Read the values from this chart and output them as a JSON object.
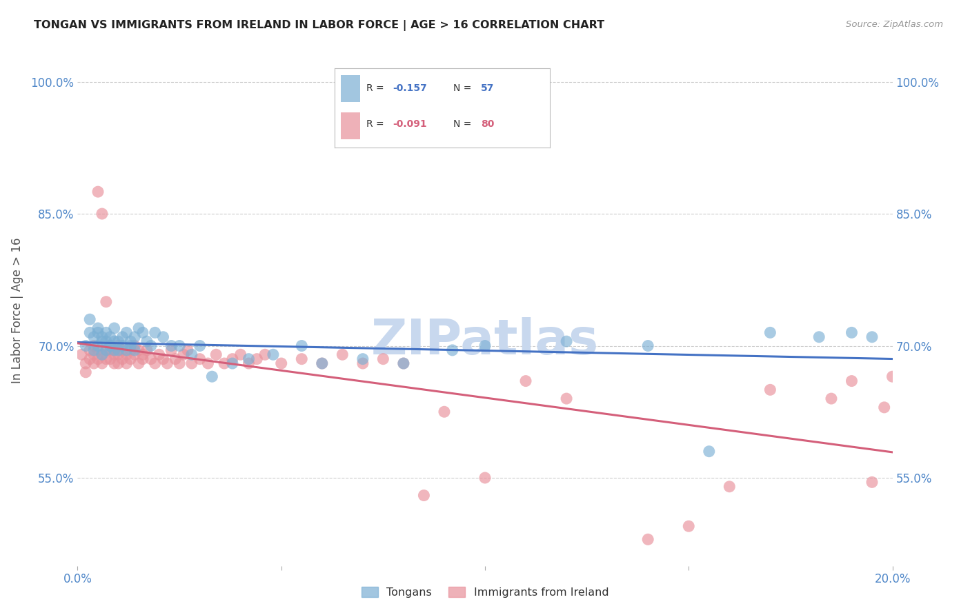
{
  "title": "TONGAN VS IMMIGRANTS FROM IRELAND IN LABOR FORCE | AGE > 16 CORRELATION CHART",
  "source": "Source: ZipAtlas.com",
  "ylabel": "In Labor Force | Age > 16",
  "xlim": [
    0.0,
    0.2
  ],
  "ylim": [
    0.45,
    1.03
  ],
  "yticks": [
    0.55,
    0.7,
    0.85,
    1.0
  ],
  "ytick_labels": [
    "55.0%",
    "70.0%",
    "85.0%",
    "100.0%"
  ],
  "xticks": [
    0.0,
    0.05,
    0.1,
    0.15,
    0.2
  ],
  "xtick_labels": [
    "0.0%",
    "",
    "",
    "",
    "20.0%"
  ],
  "series1_label": "Tongans",
  "series2_label": "Immigrants from Ireland",
  "series1_color": "#7bafd4",
  "series2_color": "#e8909a",
  "series1_line_color": "#4472c4",
  "series2_line_color": "#d45f7a",
  "background_color": "#ffffff",
  "axis_label_color": "#4e86c8",
  "title_color": "#222222",
  "grid_color": "#cccccc",
  "watermark_text": "ZIPatlas",
  "watermark_color": "#c8d8ee",
  "corr1_r": "-0.157",
  "corr1_n": "57",
  "corr2_r": "-0.091",
  "corr2_n": "80",
  "series1_x": [
    0.002,
    0.003,
    0.003,
    0.004,
    0.004,
    0.005,
    0.005,
    0.005,
    0.006,
    0.006,
    0.006,
    0.007,
    0.007,
    0.007,
    0.008,
    0.008,
    0.008,
    0.009,
    0.009,
    0.009,
    0.01,
    0.01,
    0.011,
    0.011,
    0.012,
    0.012,
    0.013,
    0.013,
    0.014,
    0.014,
    0.015,
    0.016,
    0.017,
    0.018,
    0.019,
    0.021,
    0.023,
    0.025,
    0.028,
    0.03,
    0.033,
    0.038,
    0.042,
    0.048,
    0.055,
    0.06,
    0.07,
    0.08,
    0.092,
    0.1,
    0.12,
    0.14,
    0.155,
    0.17,
    0.182,
    0.19,
    0.195
  ],
  "series1_y": [
    0.7,
    0.73,
    0.715,
    0.695,
    0.71,
    0.7,
    0.715,
    0.72,
    0.705,
    0.69,
    0.71,
    0.705,
    0.695,
    0.715,
    0.7,
    0.71,
    0.7,
    0.695,
    0.705,
    0.72,
    0.695,
    0.705,
    0.71,
    0.7,
    0.715,
    0.695,
    0.705,
    0.7,
    0.71,
    0.695,
    0.72,
    0.715,
    0.705,
    0.7,
    0.715,
    0.71,
    0.7,
    0.7,
    0.69,
    0.7,
    0.665,
    0.68,
    0.685,
    0.69,
    0.7,
    0.68,
    0.685,
    0.68,
    0.695,
    0.7,
    0.705,
    0.7,
    0.58,
    0.715,
    0.71,
    0.715,
    0.71
  ],
  "series2_x": [
    0.001,
    0.002,
    0.002,
    0.003,
    0.003,
    0.004,
    0.004,
    0.004,
    0.005,
    0.005,
    0.005,
    0.006,
    0.006,
    0.006,
    0.007,
    0.007,
    0.007,
    0.008,
    0.008,
    0.008,
    0.009,
    0.009,
    0.009,
    0.01,
    0.01,
    0.01,
    0.011,
    0.011,
    0.012,
    0.012,
    0.013,
    0.013,
    0.014,
    0.014,
    0.015,
    0.015,
    0.016,
    0.016,
    0.017,
    0.018,
    0.019,
    0.02,
    0.021,
    0.022,
    0.023,
    0.024,
    0.025,
    0.026,
    0.027,
    0.028,
    0.03,
    0.032,
    0.034,
    0.036,
    0.038,
    0.04,
    0.042,
    0.044,
    0.046,
    0.05,
    0.055,
    0.06,
    0.065,
    0.07,
    0.075,
    0.08,
    0.085,
    0.09,
    0.1,
    0.11,
    0.12,
    0.14,
    0.15,
    0.16,
    0.17,
    0.185,
    0.19,
    0.195,
    0.198,
    0.2
  ],
  "series2_y": [
    0.69,
    0.68,
    0.67,
    0.685,
    0.695,
    0.69,
    0.68,
    0.7,
    0.875,
    0.695,
    0.685,
    0.85,
    0.69,
    0.68,
    0.695,
    0.685,
    0.75,
    0.695,
    0.685,
    0.7,
    0.69,
    0.68,
    0.695,
    0.69,
    0.68,
    0.7,
    0.685,
    0.695,
    0.69,
    0.68,
    0.695,
    0.685,
    0.69,
    0.7,
    0.68,
    0.695,
    0.685,
    0.69,
    0.695,
    0.685,
    0.68,
    0.69,
    0.685,
    0.68,
    0.695,
    0.685,
    0.68,
    0.69,
    0.695,
    0.68,
    0.685,
    0.68,
    0.69,
    0.68,
    0.685,
    0.69,
    0.68,
    0.685,
    0.69,
    0.68,
    0.685,
    0.68,
    0.69,
    0.68,
    0.685,
    0.68,
    0.53,
    0.625,
    0.55,
    0.66,
    0.64,
    0.48,
    0.495,
    0.54,
    0.65,
    0.64,
    0.66,
    0.545,
    0.63,
    0.665
  ]
}
